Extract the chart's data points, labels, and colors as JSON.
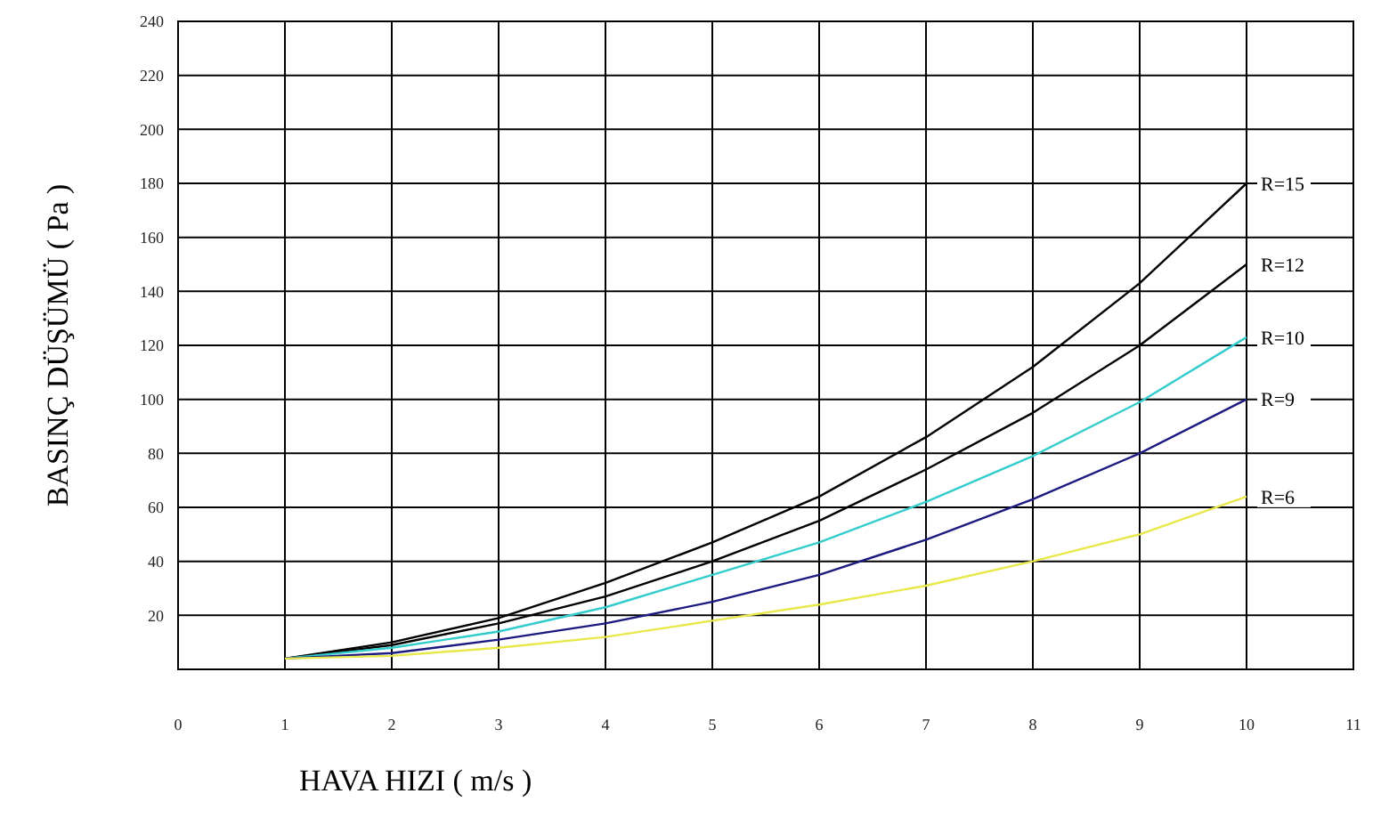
{
  "chart_data": {
    "type": "line",
    "xlabel": "HAVA HIZI ( m/s )",
    "ylabel": "BASINÇ DÜŞÜMÜ ( Pa )",
    "x": [
      1,
      2,
      3,
      4,
      5,
      6,
      7,
      8,
      9,
      10
    ],
    "xlim": [
      0,
      11
    ],
    "xticks": [
      0,
      1,
      2,
      3,
      4,
      5,
      6,
      7,
      8,
      9,
      10,
      11
    ],
    "ylim": [
      0,
      240
    ],
    "yticks": [
      20,
      40,
      60,
      80,
      100,
      120,
      140,
      160,
      180,
      200,
      220,
      240
    ],
    "grid": true,
    "legend": false,
    "marker": "none",
    "line_style": "solid",
    "series": [
      {
        "name": "R=15",
        "color": "#000000",
        "values": [
          4,
          10,
          19,
          32,
          47,
          64,
          86,
          112,
          143,
          180
        ]
      },
      {
        "name": "R=12",
        "color": "#000000",
        "values": [
          4,
          9,
          17,
          27,
          40,
          55,
          74,
          95,
          120,
          150
        ]
      },
      {
        "name": "R=10",
        "color": "#33cccc",
        "values": [
          4,
          8,
          14,
          23,
          35,
          47,
          62,
          79,
          99,
          123
        ]
      },
      {
        "name": "R=9",
        "color": "#1a1a80",
        "values": [
          4,
          6,
          11,
          17,
          25,
          35,
          48,
          63,
          80,
          100
        ]
      },
      {
        "name": "R=6",
        "color": "#e8e84a",
        "values": [
          4,
          5,
          8,
          12,
          18,
          24,
          31,
          40,
          50,
          64
        ]
      }
    ]
  }
}
